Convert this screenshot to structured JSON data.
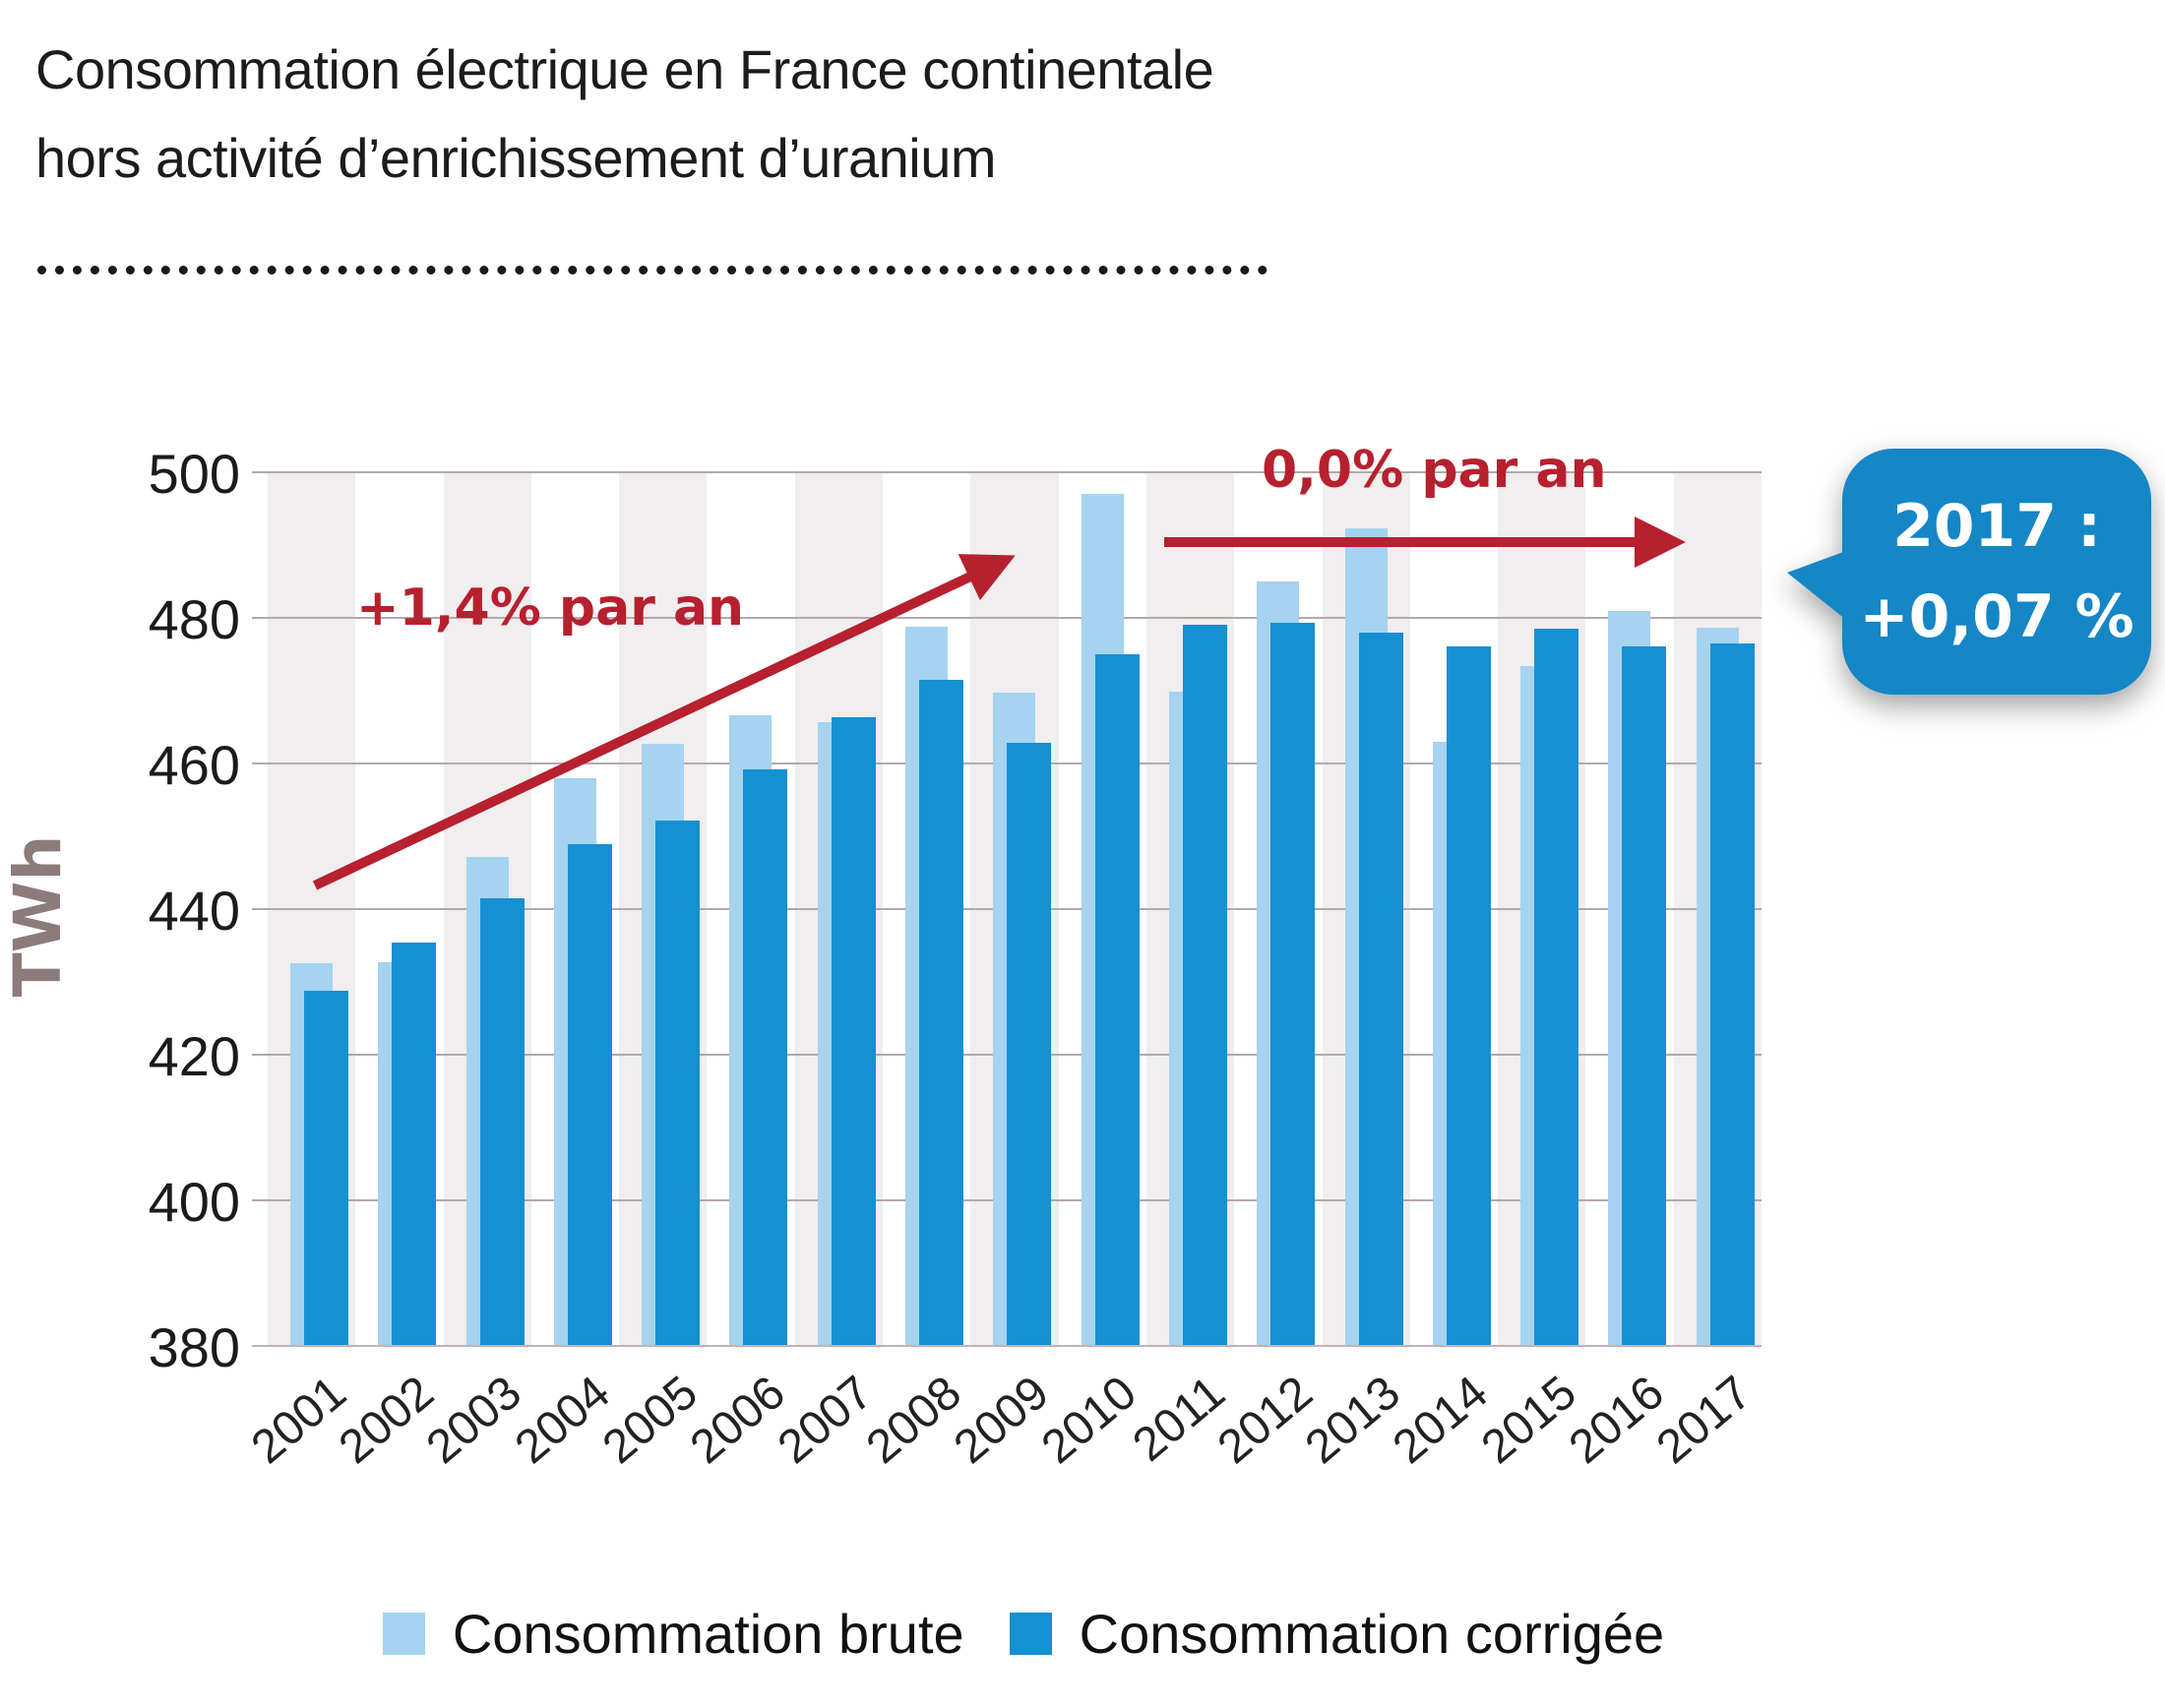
{
  "header": {
    "title_line1": "Consommation électrique en France continentale",
    "title_line2": "hors activité d’enrichissement d’uranium"
  },
  "y_axis": {
    "label": "TWh",
    "ticks": [
      500,
      480,
      460,
      440,
      420,
      400,
      380
    ]
  },
  "annotations": {
    "growth": "+1,4% par an",
    "flat": "0,0% par an"
  },
  "callout": {
    "line1": "2017 :",
    "line2": "+0,07 %"
  },
  "colors": {
    "brute": "#A6D3F0",
    "corrigee": "#1590D2",
    "callout": "#1586C6",
    "red": "#B7202E",
    "stripe": "#F0EEEE",
    "gridline": "#B5A8A8",
    "baseline": "#C1B3B5",
    "twh_label": "#8C7B7B"
  },
  "chart_data": {
    "type": "bar",
    "title": "Consommation électrique en France continentale hors activité d’enrichissement d’uranium",
    "xlabel": "",
    "ylabel": "TWh",
    "ylim": [
      380,
      500
    ],
    "yticks": [
      380,
      400,
      420,
      440,
      460,
      480,
      500
    ],
    "grid": true,
    "legend_position": "bottom",
    "categories": [
      2001,
      2002,
      2003,
      2004,
      2005,
      2006,
      2007,
      2008,
      2009,
      2010,
      2011,
      2012,
      2013,
      2014,
      2015,
      2016,
      2017
    ],
    "series": [
      {
        "name": "Consommation brute",
        "color": "#A6D3F0",
        "values": [
          432.5,
          432.6,
          447.0,
          457.8,
          462.6,
          466.5,
          465.5,
          478.7,
          469.6,
          496.9,
          469.7,
          484.9,
          492.1,
          462.8,
          473.3,
          480.8,
          478.5
        ]
      },
      {
        "name": "Consommation corrigée",
        "color": "#1590D2",
        "values": [
          428.6,
          435.3,
          441.3,
          448.8,
          452.0,
          459.1,
          466.2,
          471.4,
          462.7,
          474.9,
          478.9,
          479.2,
          477.9,
          476.0,
          478.4,
          475.9,
          476.3
        ]
      }
    ],
    "trend_annotations": [
      {
        "label": "+1,4% par an",
        "from_year": 2001,
        "to_year": 2009,
        "from_value": 443,
        "to_value": 490
      },
      {
        "label": "0,0% par an",
        "from_year": 2010,
        "to_year": 2017,
        "value": 490
      }
    ],
    "callout": {
      "year": 2017,
      "change": "+0,07 %"
    }
  }
}
